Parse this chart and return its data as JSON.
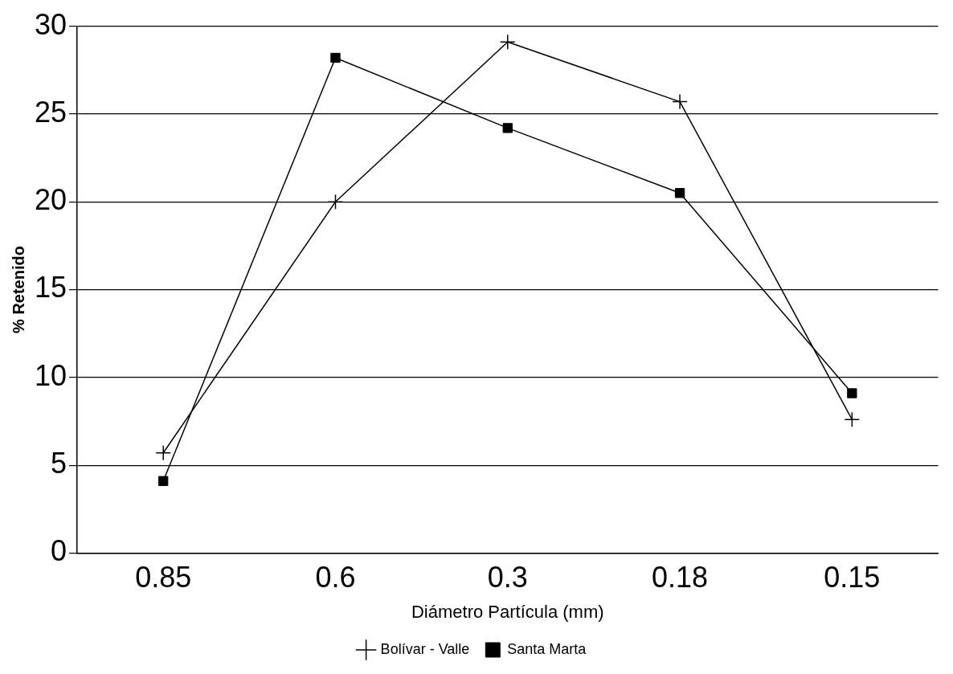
{
  "chart_data": {
    "type": "line",
    "xlabel": "Diámetro Partícula (mm)",
    "ylabel": "% Retenido",
    "categories": [
      "0.85",
      "0.6",
      "0.3",
      "0.18",
      "0.15"
    ],
    "series": [
      {
        "name": "Bolívar - Valle",
        "color": "#000000",
        "marker": "cross",
        "values": [
          5.7,
          20,
          29.1,
          25.7,
          7.6
        ]
      },
      {
        "name": "Santa Marta",
        "color": "#000000",
        "marker": "square",
        "values": [
          4.1,
          28.2,
          24.2,
          20.5,
          9.1
        ]
      }
    ],
    "ylim": [
      0,
      30
    ],
    "yticks": [
      0,
      5,
      10,
      15,
      20,
      25,
      30
    ],
    "grid": "y",
    "legend": "bottom",
    "line_style": "solid"
  }
}
